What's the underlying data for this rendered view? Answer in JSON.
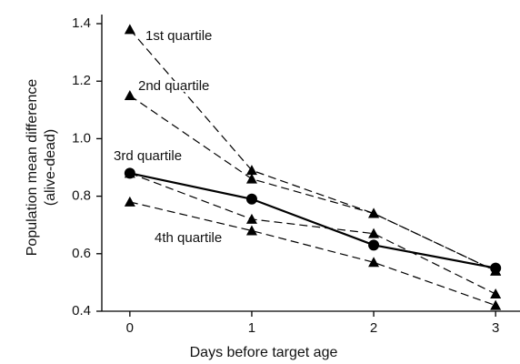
{
  "chart_data": {
    "type": "line",
    "xlabel": "Days before target age",
    "ylabel": [
      "Population mean difference",
      "(alive-dead)"
    ],
    "x": [
      0,
      1,
      2,
      3
    ],
    "xlim": [
      -0.23,
      3.2
    ],
    "ylim": [
      0.4,
      1.4
    ],
    "xticks": [
      0,
      1,
      2,
      3
    ],
    "yticks": [
      0.4,
      0.6,
      0.8,
      {
        "value": 1,
        "label": "1.0"
      },
      1.2,
      1.4
    ],
    "series": [
      {
        "name": "1st quartile",
        "color": "#000",
        "marker": "triangle",
        "dashed": true,
        "values": [
          1.38,
          0.89,
          0.74,
          0.54
        ]
      },
      {
        "name": "2nd quartile",
        "color": "#000",
        "marker": "triangle",
        "dashed": true,
        "values": [
          1.15,
          0.86,
          0.74,
          0.54
        ]
      },
      {
        "name": "3rd quartile",
        "color": "#000",
        "marker": "triangle",
        "dashed": true,
        "values": [
          0.88,
          0.72,
          0.67,
          0.46
        ]
      },
      {
        "name": "4th quartile",
        "color": "#000",
        "marker": "triangle",
        "dashed": true,
        "values": [
          0.78,
          0.68,
          0.57,
          0.42
        ]
      },
      {
        "color": "#000",
        "marker": "circle",
        "dashed": false,
        "values": [
          0.88,
          0.79,
          0.63,
          0.55
        ]
      }
    ]
  }
}
